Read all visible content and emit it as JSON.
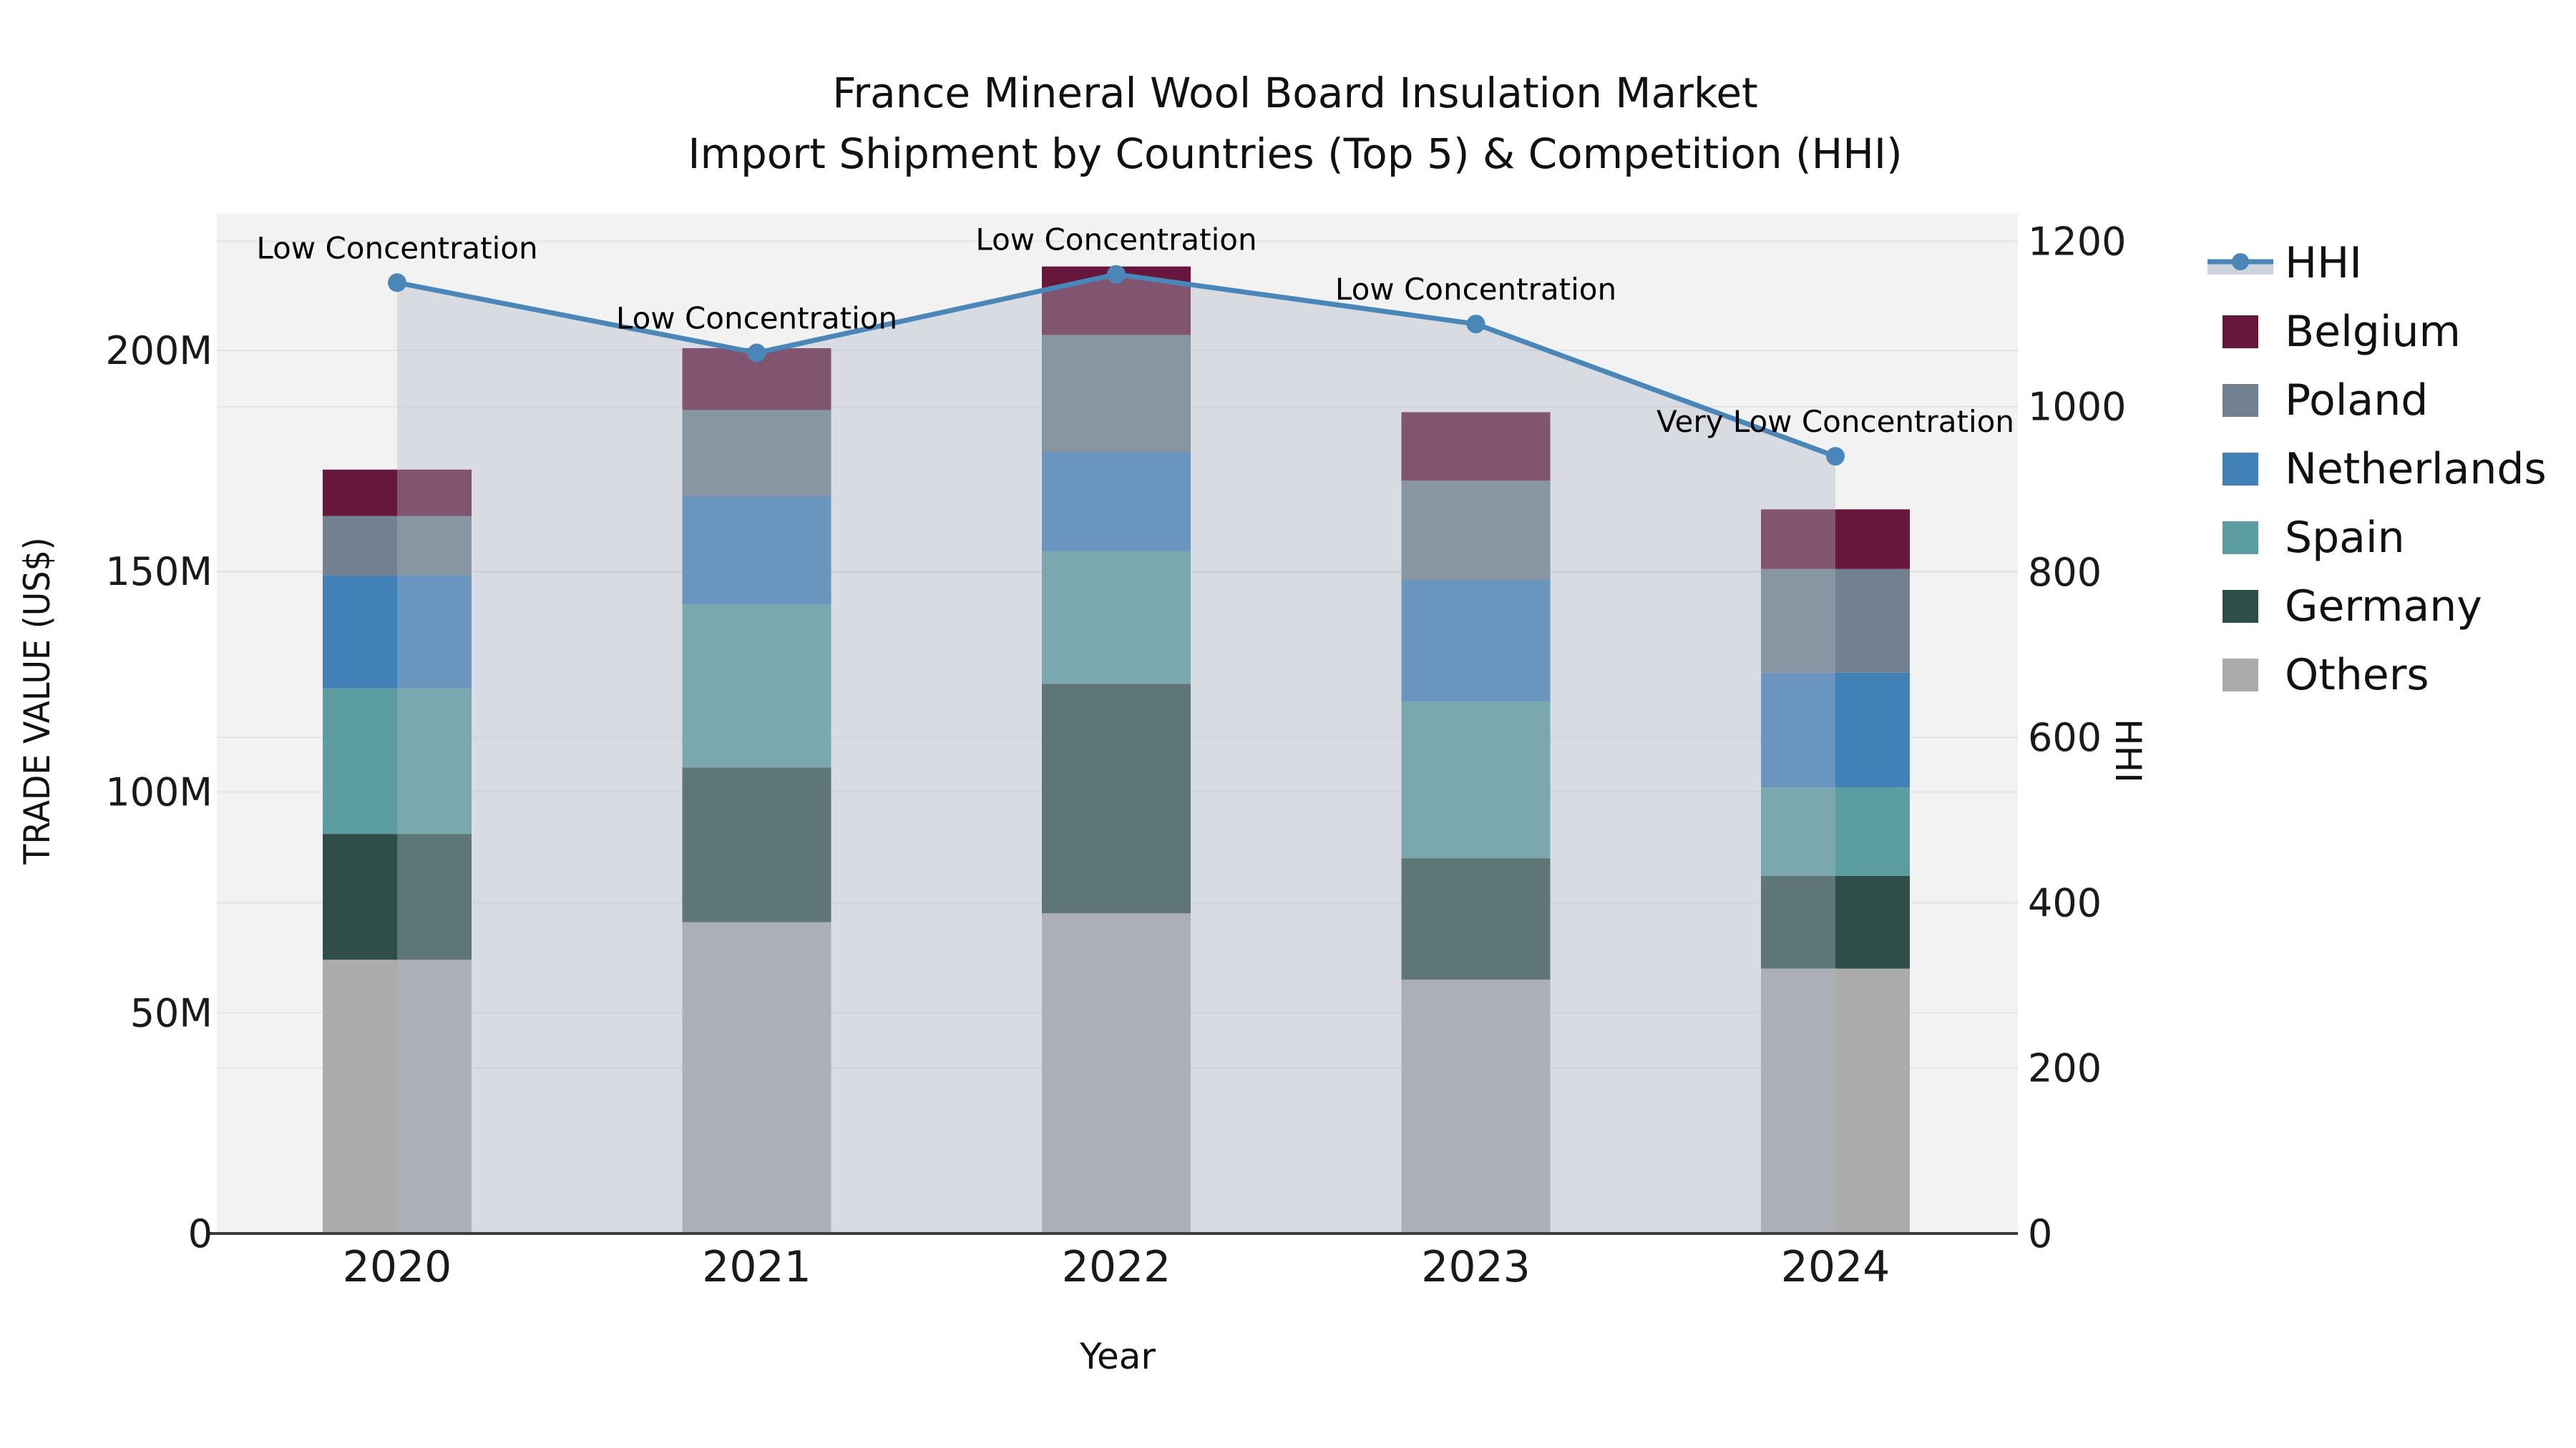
{
  "chart_data": {
    "type": "bar",
    "subtype": "stacked-bar-with-line",
    "title_line1": "France Mineral Wool Board Insulation Market",
    "title_line2": "Import Shipment by Countries (Top 5) & Competition (HHI)",
    "categories": [
      "2020",
      "2021",
      "2022",
      "2023",
      "2024"
    ],
    "x_axis": {
      "title": "Year"
    },
    "left_axis": {
      "title": "TRADE VALUE (US$)",
      "tick_labels": [
        "0",
        "50M",
        "100M",
        "150M",
        "200M"
      ],
      "tick_values": [
        0,
        50,
        100,
        150,
        200
      ],
      "units": "millions of US$",
      "range": [
        0,
        231
      ]
    },
    "right_axis": {
      "title": "HHI",
      "tick_labels": [
        "0",
        "200",
        "400",
        "600",
        "800",
        "1000",
        "1200"
      ],
      "tick_values": [
        0,
        200,
        400,
        600,
        800,
        1000,
        1200
      ],
      "range": [
        0,
        1233
      ]
    },
    "series": [
      {
        "name": "Others",
        "color": "#ababab",
        "values": [
          62,
          70.5,
          72.5,
          57.5,
          60
        ]
      },
      {
        "name": "Germany",
        "color": "#2f4e49",
        "values": [
          28.5,
          35,
          52,
          27.5,
          21
        ]
      },
      {
        "name": "Spain",
        "color": "#5c9da1",
        "values": [
          33,
          37,
          30,
          35.5,
          20
        ]
      },
      {
        "name": "Netherlands",
        "color": "#4280b8",
        "values": [
          25.5,
          24.5,
          22.5,
          27.5,
          26
        ]
      },
      {
        "name": "Poland",
        "color": "#72818f",
        "values": [
          13.5,
          19.5,
          26.5,
          22.5,
          23.5
        ]
      },
      {
        "name": "Belgium",
        "color": "#66173b",
        "values": [
          10.5,
          14,
          15.5,
          15.5,
          13.5
        ]
      }
    ],
    "stack_totals": [
      173,
      200.5,
      219,
      186,
      164
    ],
    "hhi_line": {
      "name": "HHI",
      "color": "#4a86b8",
      "marker": "circle",
      "values": [
        1150,
        1065,
        1160,
        1100,
        940
      ],
      "annotations": [
        "Low Concentration",
        "Low Concentration",
        "Low Concentration",
        "Low Concentration",
        "Very Low Concentration"
      ],
      "area_fill": "#aeb9c8",
      "area_opacity": 0.38,
      "band_color": "#ccd3dc"
    },
    "legend": [
      {
        "label": "HHI",
        "type": "line-area",
        "color": "#4a86b8",
        "band_color": "#ccd3dc"
      },
      {
        "label": "Belgium",
        "type": "swatch",
        "color": "#66173b"
      },
      {
        "label": "Poland",
        "type": "swatch",
        "color": "#72818f"
      },
      {
        "label": "Netherlands",
        "type": "swatch",
        "color": "#4280b8"
      },
      {
        "label": "Spain",
        "type": "swatch",
        "color": "#5c9da1"
      },
      {
        "label": "Germany",
        "type": "swatch",
        "color": "#2f4e49"
      },
      {
        "label": "Others",
        "type": "swatch",
        "color": "#ababab"
      }
    ],
    "plot_background": "#f2f2f2",
    "gridline_color": "#e4e4e4",
    "axis_line_color": "#3c3c3c",
    "text_color": "#1a1a1a",
    "grid": true,
    "legend_position": "right"
  }
}
